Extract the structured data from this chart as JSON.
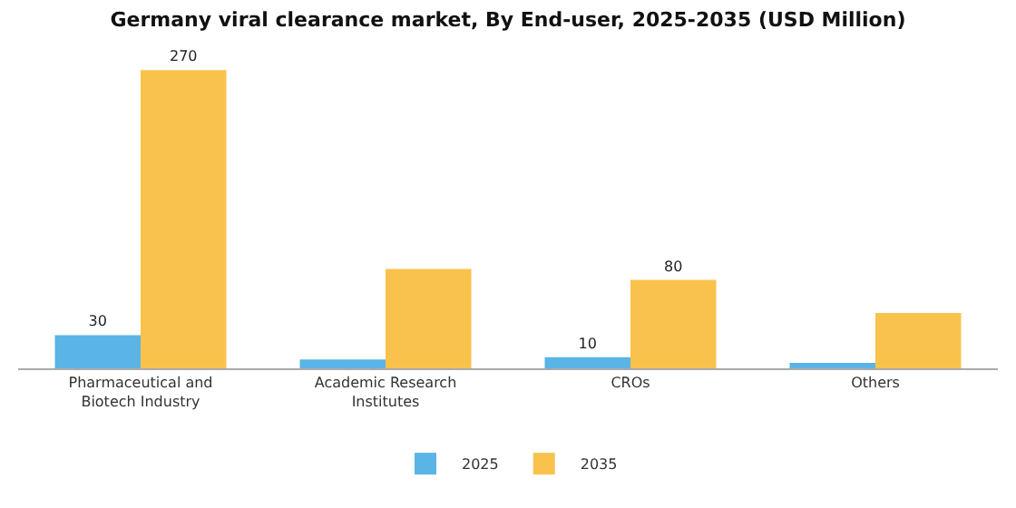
{
  "chart_data": {
    "type": "bar",
    "title": "Germany viral clearance market, By End-user, 2025-2035 (USD Million)",
    "categories": [
      "Pharmaceutical and\nBiotech Industry",
      "Academic Research\nInstitutes",
      "CROs",
      "Others"
    ],
    "series": [
      {
        "name": "2025",
        "color": "#5ab4e5",
        "values": [
          30,
          8,
          10,
          5
        ],
        "value_labels": [
          "30",
          null,
          "10",
          null
        ]
      },
      {
        "name": "2035",
        "color": "#f9c24c",
        "values": [
          270,
          90,
          80,
          50
        ],
        "value_labels": [
          "270",
          null,
          "80",
          null
        ]
      }
    ],
    "legend": "bottom",
    "grid": false
  }
}
